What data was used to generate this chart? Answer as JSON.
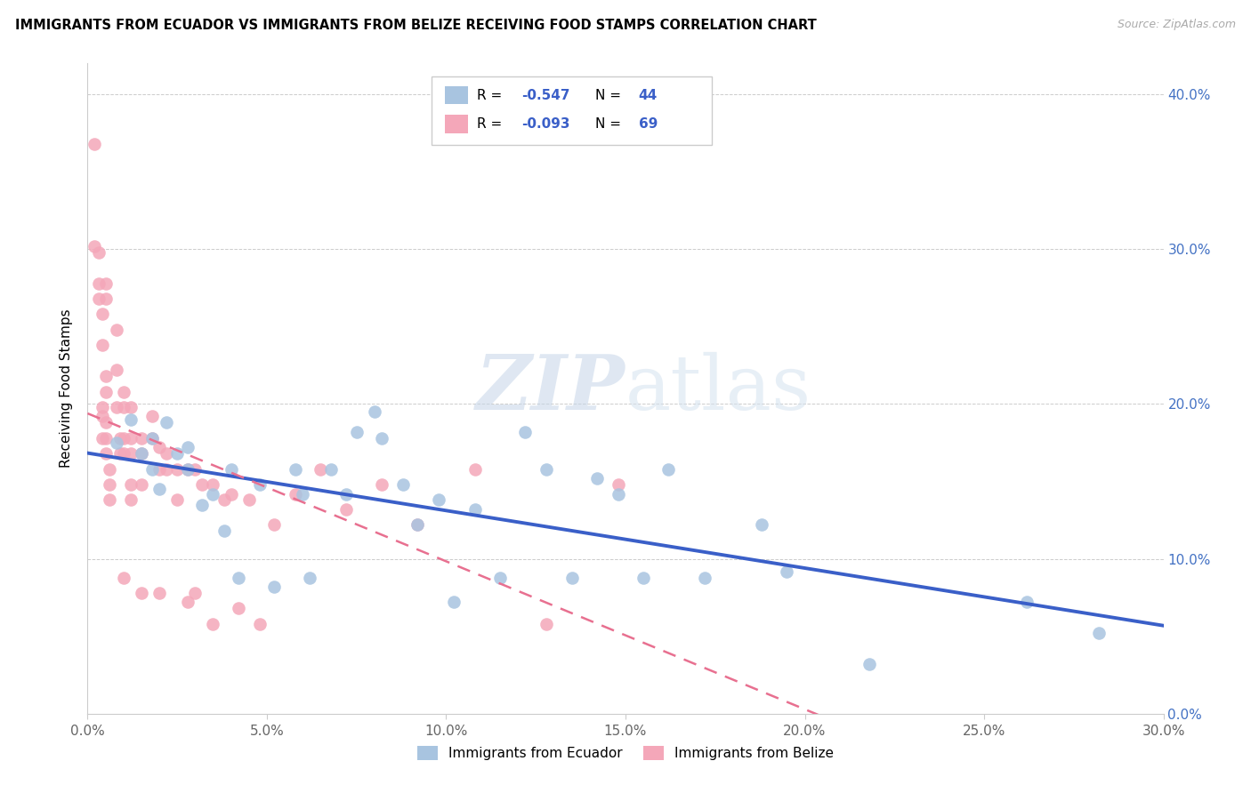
{
  "title": "IMMIGRANTS FROM ECUADOR VS IMMIGRANTS FROM BELIZE RECEIVING FOOD STAMPS CORRELATION CHART",
  "source": "Source: ZipAtlas.com",
  "ylabel_left": "Receiving Food Stamps",
  "legend_labels": [
    "Immigrants from Ecuador",
    "Immigrants from Belize"
  ],
  "x_tick_labels": [
    "0.0%",
    "5.0%",
    "10.0%",
    "15.0%",
    "20.0%",
    "25.0%",
    "30.0%"
  ],
  "x_tick_values": [
    0.0,
    0.05,
    0.1,
    0.15,
    0.2,
    0.25,
    0.3
  ],
  "y_tick_labels": [
    "0.0%",
    "10.0%",
    "20.0%",
    "30.0%",
    "40.0%"
  ],
  "y_tick_values": [
    0.0,
    0.1,
    0.2,
    0.3,
    0.4
  ],
  "xlim": [
    0.0,
    0.3
  ],
  "ylim": [
    0.0,
    0.42
  ],
  "ecuador_color": "#a8c4e0",
  "belize_color": "#f4a7b9",
  "ecuador_line_color": "#3a5fc8",
  "belize_line_color": "#e87090",
  "r_ecuador": -0.547,
  "n_ecuador": 44,
  "r_belize": -0.093,
  "n_belize": 69,
  "watermark_zip": "ZIP",
  "watermark_atlas": "atlas",
  "ecuador_x": [
    0.008,
    0.012,
    0.015,
    0.018,
    0.018,
    0.02,
    0.022,
    0.025,
    0.028,
    0.028,
    0.032,
    0.035,
    0.038,
    0.04,
    0.042,
    0.048,
    0.052,
    0.058,
    0.06,
    0.062,
    0.068,
    0.072,
    0.075,
    0.08,
    0.082,
    0.088,
    0.092,
    0.098,
    0.102,
    0.108,
    0.115,
    0.122,
    0.128,
    0.135,
    0.142,
    0.148,
    0.155,
    0.162,
    0.172,
    0.188,
    0.195,
    0.218,
    0.262,
    0.282
  ],
  "ecuador_y": [
    0.175,
    0.19,
    0.168,
    0.178,
    0.158,
    0.145,
    0.188,
    0.168,
    0.172,
    0.158,
    0.135,
    0.142,
    0.118,
    0.158,
    0.088,
    0.148,
    0.082,
    0.158,
    0.142,
    0.088,
    0.158,
    0.142,
    0.182,
    0.195,
    0.178,
    0.148,
    0.122,
    0.138,
    0.072,
    0.132,
    0.088,
    0.182,
    0.158,
    0.088,
    0.152,
    0.142,
    0.088,
    0.158,
    0.088,
    0.122,
    0.092,
    0.032,
    0.072,
    0.052
  ],
  "belize_x": [
    0.002,
    0.002,
    0.003,
    0.003,
    0.003,
    0.004,
    0.004,
    0.004,
    0.004,
    0.004,
    0.005,
    0.005,
    0.005,
    0.005,
    0.005,
    0.005,
    0.005,
    0.006,
    0.006,
    0.006,
    0.008,
    0.008,
    0.008,
    0.009,
    0.009,
    0.01,
    0.01,
    0.01,
    0.01,
    0.01,
    0.012,
    0.012,
    0.012,
    0.012,
    0.012,
    0.015,
    0.015,
    0.015,
    0.015,
    0.018,
    0.018,
    0.02,
    0.02,
    0.02,
    0.022,
    0.022,
    0.025,
    0.025,
    0.028,
    0.028,
    0.03,
    0.03,
    0.032,
    0.035,
    0.035,
    0.038,
    0.04,
    0.042,
    0.045,
    0.048,
    0.052,
    0.058,
    0.065,
    0.072,
    0.082,
    0.092,
    0.108,
    0.128,
    0.148
  ],
  "belize_y": [
    0.368,
    0.302,
    0.298,
    0.278,
    0.268,
    0.258,
    0.238,
    0.198,
    0.192,
    0.178,
    0.278,
    0.268,
    0.218,
    0.208,
    0.188,
    0.178,
    0.168,
    0.158,
    0.148,
    0.138,
    0.248,
    0.222,
    0.198,
    0.178,
    0.168,
    0.208,
    0.198,
    0.178,
    0.168,
    0.088,
    0.198,
    0.178,
    0.168,
    0.148,
    0.138,
    0.178,
    0.168,
    0.148,
    0.078,
    0.192,
    0.178,
    0.172,
    0.158,
    0.078,
    0.168,
    0.158,
    0.158,
    0.138,
    0.158,
    0.072,
    0.158,
    0.078,
    0.148,
    0.148,
    0.058,
    0.138,
    0.142,
    0.068,
    0.138,
    0.058,
    0.122,
    0.142,
    0.158,
    0.132,
    0.148,
    0.122,
    0.158,
    0.058,
    0.148
  ]
}
